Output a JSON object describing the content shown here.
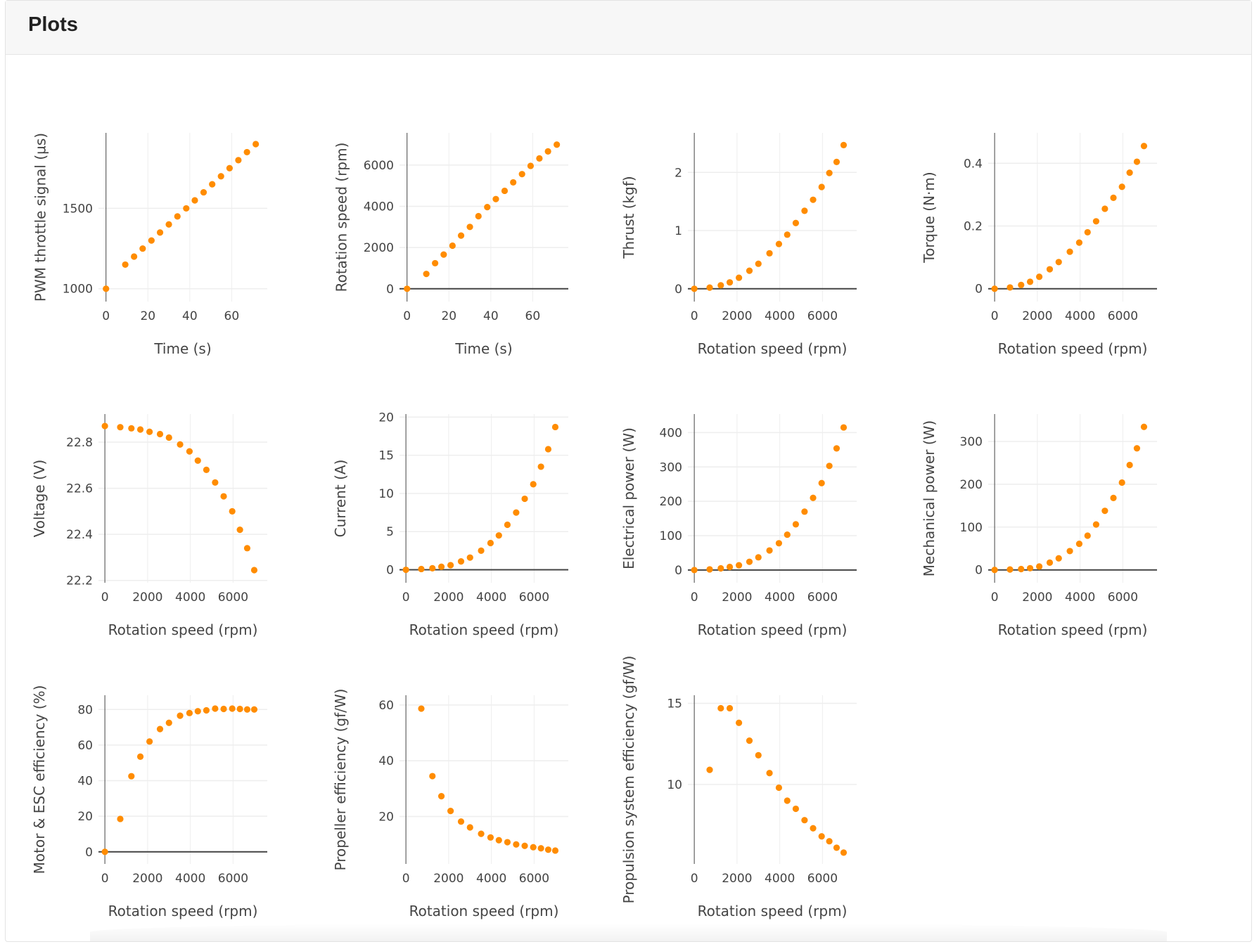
{
  "header": {
    "title": "Plots"
  },
  "marker_color": "#ff8c00",
  "chart_data": [
    {
      "type": "scatter",
      "xlabel": "Time (s)",
      "ylabel": "PWM throttle signal (µs)",
      "x": [
        0,
        9.2,
        13.4,
        17.5,
        21.7,
        25.8,
        30,
        34.1,
        38.3,
        42.4,
        46.6,
        50.7,
        54.9,
        59,
        63.2,
        67.3,
        71.5
      ],
      "y": [
        1000,
        1150,
        1200,
        1250,
        1300,
        1350,
        1400,
        1450,
        1500,
        1550,
        1600,
        1650,
        1700,
        1750,
        1800,
        1850,
        1900
      ],
      "xlim": [
        -3.6,
        77
      ],
      "ylim": [
        920,
        1970
      ],
      "xticks": [
        0,
        20,
        40,
        60
      ],
      "yticks": [
        1000,
        1500
      ],
      "grid": true
    },
    {
      "type": "scatter",
      "xlabel": "Time (s)",
      "ylabel": "Rotation speed (rpm)",
      "x": [
        0,
        9.2,
        13.4,
        17.5,
        21.7,
        25.8,
        30,
        34.1,
        38.3,
        42.4,
        46.6,
        50.7,
        54.9,
        59,
        63.2,
        67.3,
        71.5
      ],
      "y": [
        0,
        720,
        1240,
        1660,
        2090,
        2580,
        3000,
        3520,
        3960,
        4350,
        4750,
        5160,
        5560,
        5960,
        6320,
        6660,
        6990
      ],
      "xlim": [
        -3.6,
        77
      ],
      "ylim": [
        -620,
        7560
      ],
      "xticks": [
        0,
        20,
        40,
        60
      ],
      "yticks": [
        0,
        2000,
        4000,
        6000
      ],
      "grid": true
    },
    {
      "type": "scatter",
      "xlabel": "Rotation speed (rpm)",
      "ylabel": "Thrust (kgf)",
      "x": [
        0,
        720,
        1240,
        1660,
        2090,
        2580,
        3000,
        3520,
        3960,
        4350,
        4750,
        5160,
        5560,
        5960,
        6320,
        6660,
        6990
      ],
      "y": [
        0,
        0.02,
        0.06,
        0.11,
        0.19,
        0.31,
        0.43,
        0.61,
        0.77,
        0.93,
        1.13,
        1.34,
        1.53,
        1.75,
        1.99,
        2.18,
        2.47
      ],
      "xlim": [
        -300,
        7600
      ],
      "ylim": [
        -0.22,
        2.68
      ],
      "xticks": [
        0,
        2000,
        4000,
        6000
      ],
      "yticks": [
        0,
        1,
        2
      ],
      "grid": true
    },
    {
      "type": "scatter",
      "xlabel": "Rotation speed (rpm)",
      "ylabel": "Torque (N·m)",
      "x": [
        0,
        720,
        1240,
        1660,
        2090,
        2580,
        3000,
        3520,
        3960,
        4350,
        4750,
        5160,
        5560,
        5960,
        6320,
        6660,
        6990
      ],
      "y": [
        0,
        0.004,
        0.012,
        0.022,
        0.038,
        0.062,
        0.085,
        0.118,
        0.147,
        0.18,
        0.215,
        0.255,
        0.29,
        0.325,
        0.37,
        0.405,
        0.455
      ],
      "xlim": [
        -300,
        7600
      ],
      "ylim": [
        -0.041,
        0.497
      ],
      "xticks": [
        0,
        2000,
        4000,
        6000
      ],
      "yticks": [
        0,
        0.2,
        0.4
      ],
      "grid": true
    },
    {
      "type": "scatter",
      "xlabel": "Rotation speed (rpm)",
      "ylabel": "Voltage (V)",
      "x": [
        0,
        720,
        1240,
        1660,
        2090,
        2580,
        3000,
        3520,
        3960,
        4350,
        4750,
        5160,
        5560,
        5960,
        6320,
        6660,
        6990
      ],
      "y": [
        22.87,
        22.865,
        22.86,
        22.855,
        22.845,
        22.835,
        22.82,
        22.79,
        22.76,
        22.72,
        22.68,
        22.625,
        22.565,
        22.5,
        22.42,
        22.34,
        22.245
      ],
      "xlim": [
        -300,
        7600
      ],
      "ylim": [
        22.19,
        22.922
      ],
      "xticks": [
        0,
        2000,
        4000,
        6000
      ],
      "yticks": [
        22.2,
        22.4,
        22.6,
        22.8
      ],
      "grid": true
    },
    {
      "type": "scatter",
      "xlabel": "Rotation speed (rpm)",
      "ylabel": "Current (A)",
      "x": [
        0,
        720,
        1240,
        1660,
        2090,
        2580,
        3000,
        3520,
        3960,
        4350,
        4750,
        5160,
        5560,
        5960,
        6320,
        6660,
        6990
      ],
      "y": [
        0,
        0.1,
        0.2,
        0.4,
        0.6,
        1.1,
        1.6,
        2.5,
        3.5,
        4.5,
        5.9,
        7.5,
        9.3,
        11.2,
        13.5,
        15.8,
        18.7
      ],
      "xlim": [
        -300,
        7600
      ],
      "ylim": [
        -1.7,
        20.4
      ],
      "xticks": [
        0,
        2000,
        4000,
        6000
      ],
      "yticks": [
        0,
        5,
        10,
        15,
        20
      ],
      "grid": true
    },
    {
      "type": "scatter",
      "xlabel": "Rotation speed (rpm)",
      "ylabel": "Electrical power (W)",
      "x": [
        0,
        720,
        1240,
        1660,
        2090,
        2580,
        3000,
        3520,
        3960,
        4350,
        4750,
        5160,
        5560,
        5960,
        6320,
        6660,
        6990
      ],
      "y": [
        0,
        2,
        5,
        9,
        14,
        24,
        37,
        57,
        78,
        103,
        133,
        170,
        210,
        253,
        303,
        354,
        415
      ],
      "xlim": [
        -300,
        7600
      ],
      "ylim": [
        -37,
        454
      ],
      "xticks": [
        0,
        2000,
        4000,
        6000
      ],
      "yticks": [
        0,
        100,
        200,
        300,
        400
      ],
      "grid": true
    },
    {
      "type": "scatter",
      "xlabel": "Rotation speed (rpm)",
      "ylabel": "Mechanical power (W)",
      "x": [
        0,
        720,
        1240,
        1660,
        2090,
        2580,
        3000,
        3520,
        3960,
        4350,
        4750,
        5160,
        5560,
        5960,
        6320,
        6660,
        6990
      ],
      "y": [
        0,
        1,
        2,
        4,
        8,
        17,
        27,
        44,
        61,
        80,
        106,
        138,
        168,
        204,
        245,
        284,
        334
      ],
      "xlim": [
        -300,
        7600
      ],
      "ylim": [
        -30,
        364
      ],
      "xticks": [
        0,
        2000,
        4000,
        6000
      ],
      "yticks": [
        0,
        100,
        200,
        300
      ],
      "grid": true
    },
    {
      "type": "scatter",
      "xlabel": "Rotation speed (rpm)",
      "ylabel": "Motor & ESC efficiency (%)",
      "x": [
        0,
        720,
        1240,
        1660,
        2090,
        2580,
        3000,
        3520,
        3960,
        4350,
        4750,
        5160,
        5560,
        5960,
        6320,
        6660,
        6990
      ],
      "y": [
        0,
        18.5,
        42.5,
        53.5,
        62,
        69,
        72.5,
        76.5,
        78,
        79,
        79.5,
        80.5,
        80.3,
        80.5,
        80.3,
        80,
        80
      ],
      "xlim": [
        -300,
        7600
      ],
      "ylim": [
        -6.8,
        88
      ],
      "xticks": [
        0,
        2000,
        4000,
        6000
      ],
      "yticks": [
        0,
        20,
        40,
        60,
        80
      ],
      "grid": true
    },
    {
      "type": "scatter",
      "xlabel": "Rotation speed (rpm)",
      "ylabel": "Propeller efficiency (gf/W)",
      "x": [
        720,
        1240,
        1660,
        2090,
        2580,
        3000,
        3520,
        3960,
        4350,
        4750,
        5160,
        5560,
        5960,
        6320,
        6660,
        6990
      ],
      "y": [
        58.7,
        34.5,
        27.3,
        22,
        18.2,
        16.1,
        13.8,
        12.5,
        11.5,
        10.8,
        10,
        9.5,
        9,
        8.6,
        8.1,
        7.8
      ],
      "xlim": [
        -300,
        7600
      ],
      "ylim": [
        3,
        63.5
      ],
      "xticks": [
        0,
        2000,
        4000,
        6000
      ],
      "yticks": [
        20,
        40,
        60
      ],
      "grid": true
    },
    {
      "type": "scatter",
      "xlabel": "Rotation speed (rpm)",
      "ylabel": "Propulsion system efficiency (gf/W)",
      "x": [
        720,
        1240,
        1660,
        2090,
        2580,
        3000,
        3520,
        3960,
        4350,
        4750,
        5160,
        5560,
        5960,
        6320,
        6660,
        6990
      ],
      "y": [
        10.9,
        14.7,
        14.7,
        13.8,
        12.7,
        11.8,
        10.7,
        9.8,
        9.0,
        8.5,
        7.8,
        7.3,
        6.8,
        6.5,
        6.1,
        5.8
      ],
      "xlim": [
        -300,
        7600
      ],
      "ylim": [
        5.1,
        15.5
      ],
      "xticks": [
        0,
        2000,
        4000,
        6000
      ],
      "yticks": [
        10,
        15
      ],
      "grid": true
    }
  ]
}
